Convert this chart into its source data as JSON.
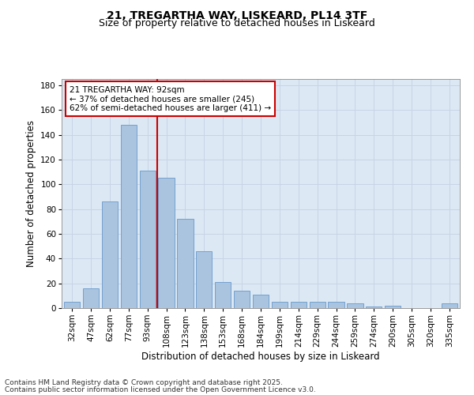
{
  "title1": "21, TREGARTHA WAY, LISKEARD, PL14 3TF",
  "title2": "Size of property relative to detached houses in Liskeard",
  "xlabel": "Distribution of detached houses by size in Liskeard",
  "ylabel": "Number of detached properties",
  "categories": [
    "32sqm",
    "47sqm",
    "62sqm",
    "77sqm",
    "93sqm",
    "108sqm",
    "123sqm",
    "138sqm",
    "153sqm",
    "168sqm",
    "184sqm",
    "199sqm",
    "214sqm",
    "229sqm",
    "244sqm",
    "259sqm",
    "274sqm",
    "290sqm",
    "305sqm",
    "320sqm",
    "335sqm"
  ],
  "values": [
    5,
    16,
    86,
    148,
    111,
    105,
    72,
    46,
    21,
    14,
    11,
    5,
    5,
    5,
    5,
    4,
    1,
    2,
    0,
    0,
    4
  ],
  "bar_color": "#aac4e0",
  "bar_edge_color": "#6699cc",
  "bar_edge_width": 0.6,
  "vline_index": 4,
  "vline_color": "#cc0000",
  "annotation_line1": "21 TREGARTHA WAY: 92sqm",
  "annotation_line2": "← 37% of detached houses are smaller (245)",
  "annotation_line3": "62% of semi-detached houses are larger (411) →",
  "annotation_box_color": "#ffffff",
  "annotation_box_edge": "#cc0000",
  "ylim": [
    0,
    185
  ],
  "yticks": [
    0,
    20,
    40,
    60,
    80,
    100,
    120,
    140,
    160,
    180
  ],
  "grid_color": "#c8d4e4",
  "bg_color": "#dce8f4",
  "footer1": "Contains HM Land Registry data © Crown copyright and database right 2025.",
  "footer2": "Contains public sector information licensed under the Open Government Licence v3.0.",
  "title_fontsize": 10,
  "subtitle_fontsize": 9,
  "axis_label_fontsize": 8.5,
  "tick_fontsize": 7.5,
  "annotation_fontsize": 7.5,
  "footer_fontsize": 6.5
}
